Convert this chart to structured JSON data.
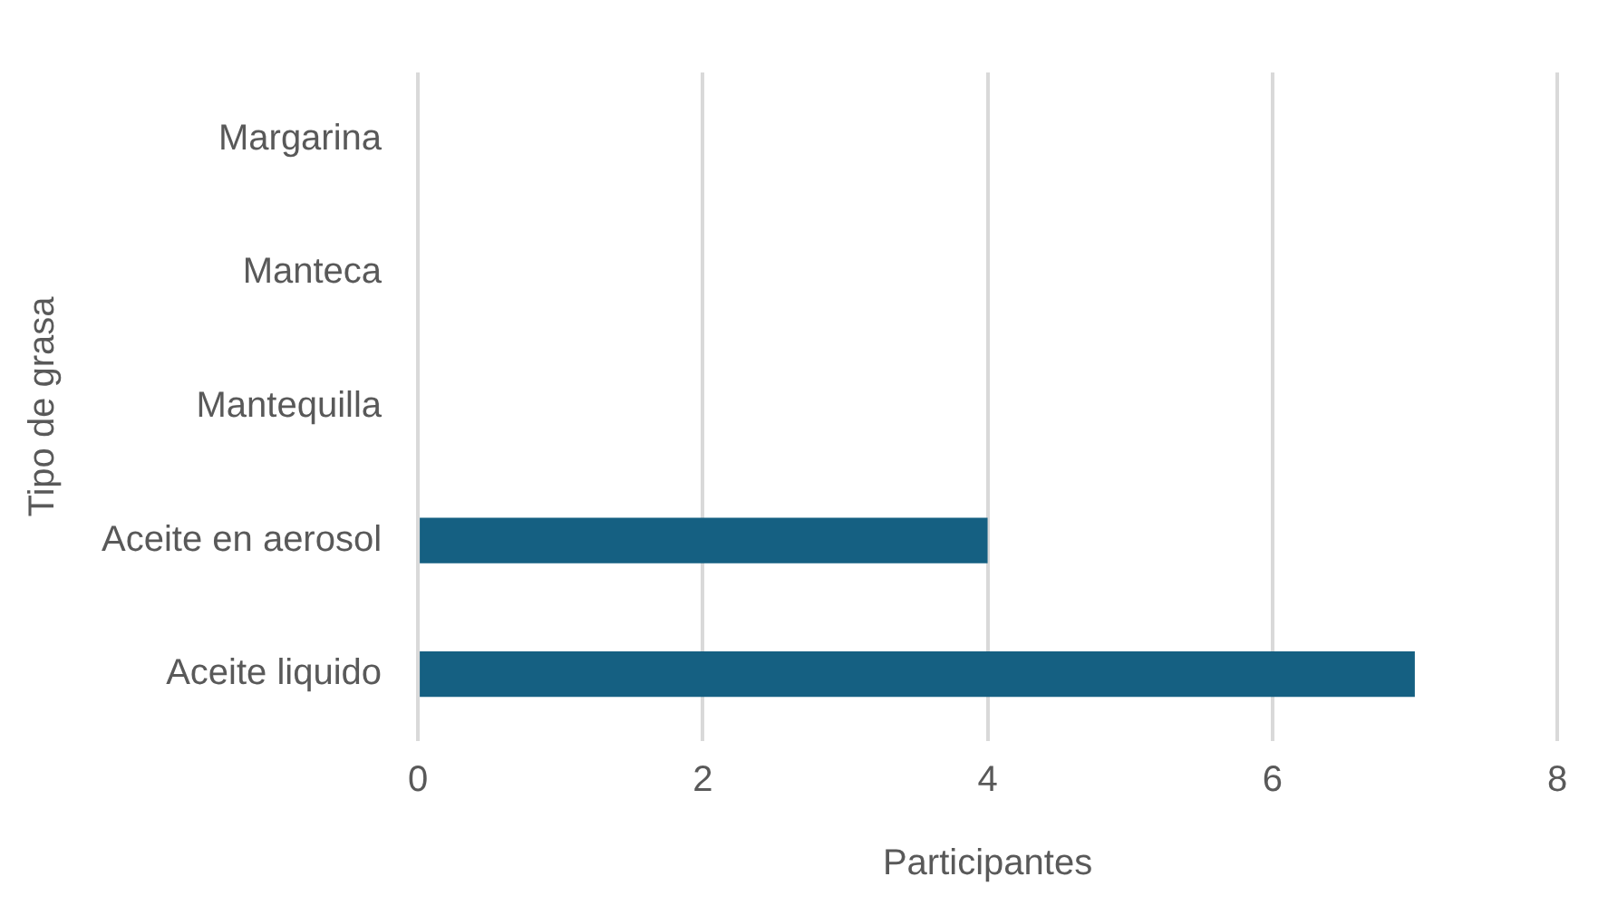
{
  "chart_data": {
    "type": "bar",
    "orientation": "horizontal",
    "xlabel": "Participantes",
    "ylabel": "Tipo de grasa",
    "categories": [
      "Margarina",
      "Manteca",
      "Mantequilla",
      "Aceite en aerosol",
      "Aceite liquido"
    ],
    "values": [
      0,
      0,
      0,
      4,
      7
    ],
    "color": "#156082",
    "xlim": [
      0,
      8
    ],
    "xticks": [
      0,
      2,
      4,
      6,
      8
    ],
    "grid": "x",
    "legend": false
  }
}
